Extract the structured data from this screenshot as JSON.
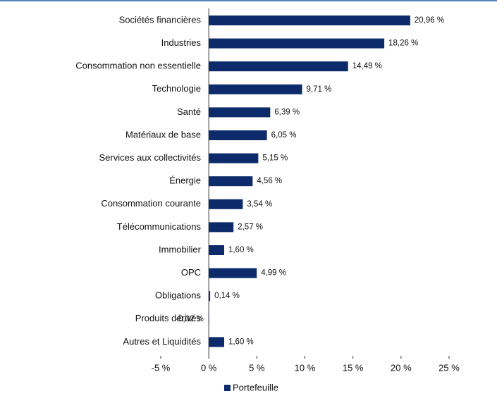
{
  "chart_data": {
    "type": "barh",
    "categories": [
      "Sociétés financières",
      "Industries",
      "Consommation non essentielle",
      "Technologie",
      "Santé",
      "Matériaux de base",
      "Services aux collectivités",
      "Énergie",
      "Consommation courante",
      "Télécommunications",
      "Immobilier",
      "OPC",
      "Obligations",
      "Produits dérivés",
      "Autres et Liquidités"
    ],
    "series": [
      {
        "name": "Portefeuille",
        "color": "#0d2b6b",
        "values": [
          20.96,
          18.26,
          14.49,
          9.71,
          6.39,
          6.05,
          5.15,
          4.56,
          3.54,
          2.57,
          1.6,
          4.99,
          0.14,
          -0.02,
          1.6
        ],
        "value_labels": [
          "20,96 %",
          "18,26 %",
          "14,49 %",
          "9,71 %",
          "6,39 %",
          "6,05 %",
          "5,15 %",
          "4,56 %",
          "3,54 %",
          "2,57 %",
          "1,60 %",
          "4,99 %",
          "0,14 %",
          "-0,02 %",
          "1,60 %"
        ]
      }
    ],
    "xlim": [
      -5,
      25
    ],
    "xticks": [
      {
        "value": -5,
        "label": "-5 %"
      },
      {
        "value": 0,
        "label": "0 %"
      },
      {
        "value": 5,
        "label": "5 %"
      },
      {
        "value": 10,
        "label": "10 %"
      },
      {
        "value": 15,
        "label": "15 %"
      },
      {
        "value": 20,
        "label": "20 %"
      },
      {
        "value": 25,
        "label": "25 %"
      }
    ]
  }
}
